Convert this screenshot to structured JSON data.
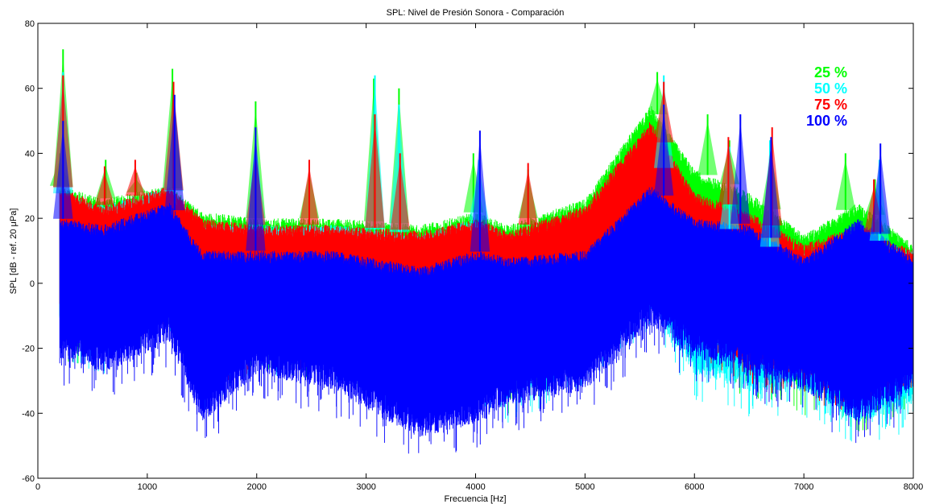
{
  "chart_data": {
    "type": "line",
    "title": "SPL: Nivel de Presión Sonora  - Comparación",
    "xlabel": "Frecuencia [Hz]",
    "ylabel": "SPL [dB - ref. 20 μPa]",
    "xlim": [
      0,
      8000
    ],
    "ylim": [
      -60,
      80
    ],
    "xticks": [
      0,
      1000,
      2000,
      3000,
      4000,
      5000,
      6000,
      7000,
      8000
    ],
    "yticks": [
      -60,
      -40,
      -20,
      0,
      20,
      40,
      60,
      80
    ],
    "grid": false,
    "legend_position": "top-right",
    "series": [
      {
        "name": "25 %",
        "color": "#00ff00",
        "peaks": [
          [
            200,
            40
          ],
          [
            230,
            72
          ],
          [
            620,
            38
          ],
          [
            900,
            34
          ],
          [
            1230,
            66
          ],
          [
            1990,
            56
          ],
          [
            2480,
            36
          ],
          [
            3070,
            63
          ],
          [
            3300,
            60
          ],
          [
            3980,
            40
          ],
          [
            4480,
            35
          ],
          [
            5660,
            65
          ],
          [
            6120,
            52
          ],
          [
            6320,
            44
          ],
          [
            6700,
            42
          ],
          [
            7380,
            40
          ],
          [
            7650,
            32
          ]
        ],
        "envelope": [
          [
            200,
            -10,
            30
          ],
          [
            600,
            -10,
            26
          ],
          [
            1200,
            0,
            30
          ],
          [
            1500,
            -20,
            22
          ],
          [
            2000,
            -12,
            20
          ],
          [
            2700,
            -15,
            20
          ],
          [
            3500,
            -25,
            18
          ],
          [
            4000,
            -20,
            22
          ],
          [
            4300,
            -25,
            18
          ],
          [
            5000,
            -12,
            26
          ],
          [
            5600,
            10,
            55
          ],
          [
            6000,
            -10,
            35
          ],
          [
            6500,
            -20,
            28
          ],
          [
            7000,
            -25,
            15
          ],
          [
            7500,
            -30,
            25
          ],
          [
            8000,
            -25,
            12
          ]
        ]
      },
      {
        "name": "50 %",
        "color": "#00ffff",
        "peaks": [
          [
            230,
            65
          ],
          [
            1240,
            60
          ],
          [
            1990,
            45
          ],
          [
            3080,
            64
          ],
          [
            3300,
            55
          ],
          [
            4030,
            38
          ],
          [
            5720,
            64
          ],
          [
            6320,
            42
          ],
          [
            6690,
            44
          ],
          [
            7690,
            38
          ]
        ],
        "envelope": [
          [
            200,
            -10,
            28
          ],
          [
            600,
            -12,
            24
          ],
          [
            1200,
            2,
            30
          ],
          [
            1500,
            -25,
            18
          ],
          [
            2000,
            -12,
            18
          ],
          [
            2700,
            -15,
            18
          ],
          [
            3500,
            -28,
            15
          ],
          [
            4000,
            -22,
            20
          ],
          [
            4300,
            -28,
            15
          ],
          [
            5000,
            -15,
            20
          ],
          [
            5600,
            0,
            40
          ],
          [
            6000,
            -20,
            25
          ],
          [
            6500,
            -25,
            12
          ],
          [
            7000,
            -25,
            10
          ],
          [
            7500,
            -35,
            15
          ],
          [
            8000,
            -30,
            10
          ]
        ]
      },
      {
        "name": "75 %",
        "color": "#ff0000",
        "peaks": [
          [
            230,
            64
          ],
          [
            610,
            36
          ],
          [
            890,
            38
          ],
          [
            1240,
            62
          ],
          [
            1990,
            42
          ],
          [
            2480,
            38
          ],
          [
            3080,
            52
          ],
          [
            3310,
            40
          ],
          [
            4480,
            37
          ],
          [
            5720,
            62
          ],
          [
            6310,
            45
          ],
          [
            6710,
            48
          ],
          [
            7640,
            32
          ]
        ],
        "envelope": [
          [
            200,
            -5,
            30
          ],
          [
            600,
            -8,
            24
          ],
          [
            1200,
            0,
            30
          ],
          [
            1500,
            -22,
            20
          ],
          [
            2000,
            -10,
            18
          ],
          [
            2700,
            -12,
            18
          ],
          [
            3500,
            -22,
            16
          ],
          [
            4000,
            -18,
            20
          ],
          [
            4300,
            -22,
            16
          ],
          [
            5000,
            -8,
            24
          ],
          [
            5600,
            8,
            50
          ],
          [
            6000,
            -5,
            28
          ],
          [
            6500,
            -18,
            22
          ],
          [
            7000,
            -20,
            12
          ],
          [
            7500,
            -25,
            18
          ],
          [
            8000,
            -20,
            10
          ]
        ]
      },
      {
        "name": "100 %",
        "color": "#0000ff",
        "peaks": [
          [
            230,
            50
          ],
          [
            1250,
            58
          ],
          [
            1990,
            48
          ],
          [
            4040,
            47
          ],
          [
            5720,
            55
          ],
          [
            6420,
            52
          ],
          [
            6700,
            45
          ],
          [
            7700,
            43
          ]
        ],
        "envelope": [
          [
            200,
            -15,
            20
          ],
          [
            600,
            -20,
            18
          ],
          [
            1200,
            -10,
            25
          ],
          [
            1500,
            -35,
            10
          ],
          [
            2000,
            -20,
            10
          ],
          [
            2700,
            -25,
            10
          ],
          [
            3500,
            -40,
            5
          ],
          [
            4000,
            -35,
            10
          ],
          [
            4300,
            -30,
            8
          ],
          [
            5000,
            -25,
            10
          ],
          [
            5600,
            -5,
            30
          ],
          [
            6000,
            -15,
            20
          ],
          [
            6500,
            -20,
            18
          ],
          [
            7000,
            -25,
            8
          ],
          [
            7500,
            -35,
            20
          ],
          [
            8000,
            -25,
            8
          ]
        ]
      }
    ]
  }
}
